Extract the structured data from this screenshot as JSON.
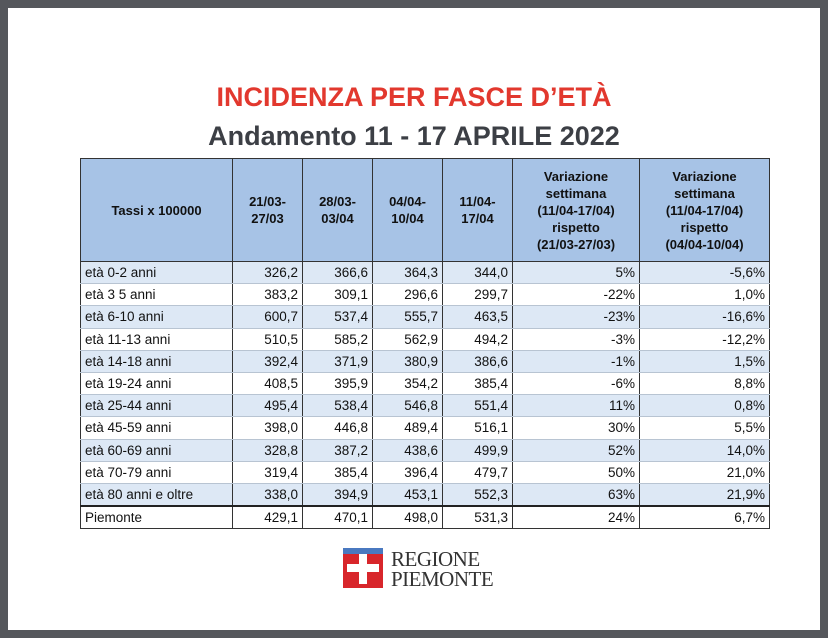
{
  "header": {
    "title": "INCIDENZA PER FASCE D’ETÀ",
    "subtitle": "Andamento 11 - 17 APRILE 2022"
  },
  "table": {
    "columns": [
      [
        "Tassi x 100000"
      ],
      [
        "21/03-",
        "27/03"
      ],
      [
        "28/03-",
        "03/04"
      ],
      [
        "04/04-",
        "10/04"
      ],
      [
        "11/04-",
        "17/04"
      ],
      [
        "Variazione",
        "settimana",
        "(11/04-17/04)",
        "rispetto",
        "(21/03-27/03)"
      ],
      [
        "Variazione",
        "settimana",
        "(11/04-17/04)",
        "rispetto",
        "(04/04-10/04)"
      ]
    ],
    "rows": [
      [
        "età 0-2 anni",
        "326,2",
        "366,6",
        "364,3",
        "344,0",
        "5%",
        "-5,6%"
      ],
      [
        "età 3 5 anni",
        "383,2",
        "309,1",
        "296,6",
        "299,7",
        "-22%",
        "1,0%"
      ],
      [
        "età 6-10 anni",
        "600,7",
        "537,4",
        "555,7",
        "463,5",
        "-23%",
        "-16,6%"
      ],
      [
        "età 11-13 anni",
        "510,5",
        "585,2",
        "562,9",
        "494,2",
        "-3%",
        "-12,2%"
      ],
      [
        "età 14-18 anni",
        "392,4",
        "371,9",
        "380,9",
        "386,6",
        "-1%",
        "1,5%"
      ],
      [
        "età 19-24 anni",
        "408,5",
        "395,9",
        "354,2",
        "385,4",
        "-6%",
        "8,8%"
      ],
      [
        "età 25-44 anni",
        "495,4",
        "538,4",
        "546,8",
        "551,4",
        "11%",
        "0,8%"
      ],
      [
        "età 45-59 anni",
        "398,0",
        "446,8",
        "489,4",
        "516,1",
        "30%",
        "5,5%"
      ],
      [
        "età 60-69 anni",
        "328,8",
        "387,2",
        "438,6",
        "499,9",
        "52%",
        "14,0%"
      ],
      [
        "età 70-79 anni",
        "319,4",
        "385,4",
        "396,4",
        "479,7",
        "50%",
        "21,0%"
      ],
      [
        "età 80 anni e oltre",
        "338,0",
        "394,9",
        "453,1",
        "552,3",
        "63%",
        "21,9%"
      ],
      [
        "Piemonte",
        "429,1",
        "470,1",
        "498,0",
        "531,3",
        "24%",
        "6,7%"
      ]
    ]
  },
  "logo": {
    "line1": "REGIONE",
    "line2": "PIEMONTE"
  }
}
